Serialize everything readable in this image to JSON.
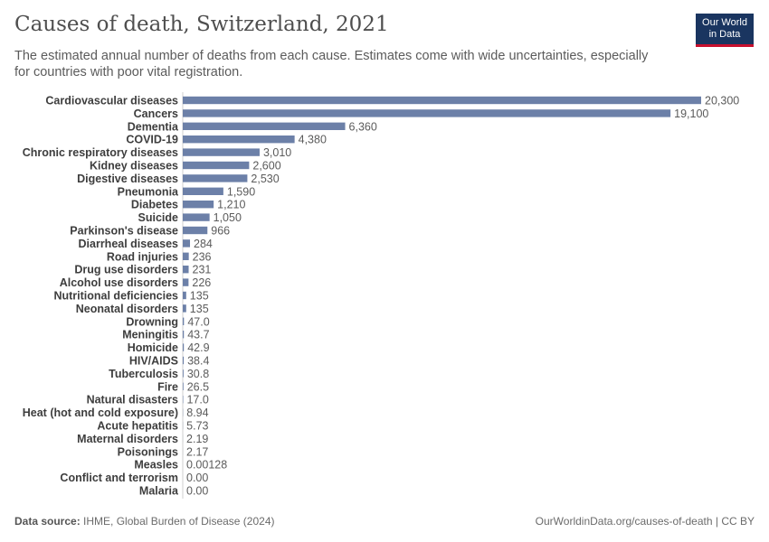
{
  "header": {
    "title": "Causes of death, Switzerland, 2021",
    "subtitle": "The estimated annual number of deaths from each cause. Estimates come with wide uncertainties, especially for countries with poor vital registration."
  },
  "logo": {
    "line1": "Our World",
    "line2": "in Data"
  },
  "footer": {
    "source_label": "Data source:",
    "source_text": "IHME, Global Burden of Disease (2024)",
    "url_text": "OurWorldinData.org/causes-of-death | CC BY"
  },
  "colors": {
    "bar": "#6c80a8",
    "label": "#3d3d3d",
    "value": "#5b5b5b",
    "axis": "#cfcfcf"
  },
  "chart_data": {
    "type": "bar",
    "orientation": "horizontal",
    "title": "Causes of death, Switzerland, 2021",
    "xlabel": "",
    "ylabel": "",
    "xlim": [
      0,
      20300
    ],
    "categories": [
      "Cardiovascular diseases",
      "Cancers",
      "Dementia",
      "COVID-19",
      "Chronic respiratory diseases",
      "Kidney diseases",
      "Digestive diseases",
      "Pneumonia",
      "Diabetes",
      "Suicide",
      "Parkinson's disease",
      "Diarrheal diseases",
      "Road injuries",
      "Drug use disorders",
      "Alcohol use disorders",
      "Nutritional deficiencies",
      "Neonatal disorders",
      "Drowning",
      "Meningitis",
      "Homicide",
      "HIV/AIDS",
      "Tuberculosis",
      "Fire",
      "Natural disasters",
      "Heat (hot and cold exposure)",
      "Acute hepatitis",
      "Maternal disorders",
      "Poisonings",
      "Measles",
      "Conflict and terrorism",
      "Malaria"
    ],
    "values": [
      20300,
      19100,
      6360,
      4380,
      3010,
      2600,
      2530,
      1590,
      1210,
      1050,
      966,
      284,
      236,
      231,
      226,
      135,
      135,
      47.0,
      43.7,
      42.9,
      38.4,
      30.8,
      26.5,
      17.0,
      8.94,
      5.73,
      2.19,
      2.17,
      0.00128,
      0.0,
      0.0
    ],
    "value_labels": [
      "20,300",
      "19,100",
      "6,360",
      "4,380",
      "3,010",
      "2,600",
      "2,530",
      "1,590",
      "1,210",
      "1,050",
      "966",
      "284",
      "236",
      "231",
      "226",
      "135",
      "135",
      "47.0",
      "43.7",
      "42.9",
      "38.4",
      "30.8",
      "26.5",
      "17.0",
      "8.94",
      "5.73",
      "2.19",
      "2.17",
      "0.00128",
      "0.00",
      "0.00"
    ]
  }
}
